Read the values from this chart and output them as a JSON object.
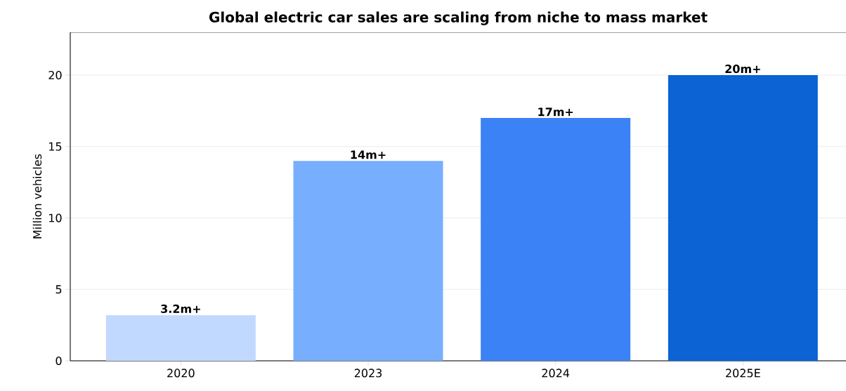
{
  "chart_data": {
    "type": "bar",
    "title": "Global electric car sales are scaling from niche to mass market",
    "ylabel": "Million vehicles",
    "categories": [
      "2020",
      "2023",
      "2024",
      "2025E"
    ],
    "values": [
      3.2,
      14,
      17,
      20
    ],
    "colors": [
      "#c2d9ff",
      "#77aefe",
      "#3b82f6",
      "#0b63d4"
    ],
    "value_labels": [
      "3.2m+",
      "14m+",
      "17m+",
      "20m+"
    ],
    "ylim": [
      0,
      23
    ],
    "yticks": [
      0,
      5,
      10,
      15,
      20
    ],
    "grid": "y"
  }
}
